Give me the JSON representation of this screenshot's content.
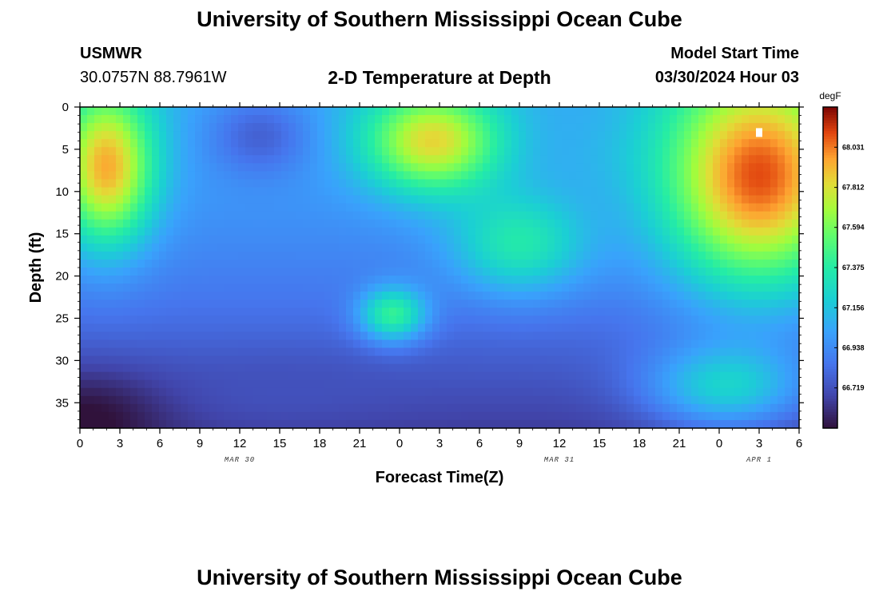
{
  "header": {
    "title": "University of Southern Mississippi Ocean Cube",
    "station": "USMWR",
    "coords": "30.0757N  88.7961W",
    "subtitle": "2-D Temperature at Depth",
    "model_start_label": "Model Start Time",
    "model_start_time": "03/30/2024 Hour 03"
  },
  "footer": {
    "title": "University of Southern Mississippi Ocean Cube"
  },
  "chart_data": {
    "type": "heatmap",
    "xlabel": "Forecast Time(Z)",
    "ylabel": "Depth (ft)",
    "x_tick_labels": [
      "0",
      "3",
      "6",
      "9",
      "12",
      "15",
      "18",
      "21",
      "0",
      "3",
      "6",
      "9",
      "12",
      "15",
      "18",
      "21",
      "0",
      "3",
      "6"
    ],
    "date_labels": [
      {
        "text": "MAR 30",
        "tick_index": 4
      },
      {
        "text": "MAR 31",
        "tick_index": 12
      },
      {
        "text": "APR 1",
        "tick_index": 17
      }
    ],
    "y_ticks": [
      0,
      5,
      10,
      15,
      20,
      25,
      30,
      35
    ],
    "ylim": [
      0,
      38
    ],
    "x_hours_range": [
      0,
      54
    ],
    "colorbar": {
      "unit": "degF",
      "labels": [
        "68.031",
        "67.812",
        "67.594",
        "67.375",
        "67.156",
        "66.938",
        "66.719"
      ],
      "range": [
        66.5,
        68.25
      ]
    },
    "hotspots": [
      {
        "hour": 2.0,
        "depth": 7,
        "rx": 3.5,
        "ry": 9,
        "temp": 67.95
      },
      {
        "hour": 26.5,
        "depth": 4,
        "rx": 5,
        "ry": 6,
        "temp": 67.85
      },
      {
        "hour": 51.0,
        "depth": 8,
        "rx": 7,
        "ry": 13,
        "temp": 68.1
      },
      {
        "hour": 23.5,
        "depth": 24.5,
        "rx": 2.5,
        "ry": 3.2,
        "temp": 67.42
      },
      {
        "hour": 33.0,
        "depth": 16,
        "rx": 5,
        "ry": 6,
        "temp": 67.35
      },
      {
        "hour": 13.5,
        "depth": 3.5,
        "rx": 4,
        "ry": 5,
        "temp": 66.78
      },
      {
        "hour": 0.5,
        "depth": 37.5,
        "rx": 6,
        "ry": 6,
        "temp": 66.48
      },
      {
        "hour": 15,
        "depth": 33,
        "rx": 9,
        "ry": 4,
        "temp": 66.72
      },
      {
        "hour": 48.5,
        "depth": 33,
        "rx": 6,
        "ry": 5,
        "temp": 67.2
      },
      {
        "hour": 39,
        "depth": 4,
        "rx": 4,
        "ry": 5,
        "temp": 67.05
      }
    ],
    "base_temp_surface": 67.05,
    "base_temp_bottom": 66.65
  },
  "colors": {
    "frame": "#000000",
    "background": "#ffffff"
  }
}
